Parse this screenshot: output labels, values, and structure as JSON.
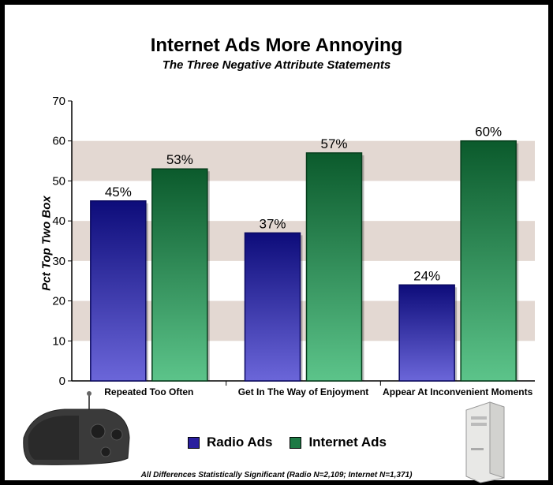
{
  "chart_data": {
    "type": "bar",
    "title": "Internet Ads More Annoying",
    "subtitle": "The Three Negative Attribute Statements",
    "ylabel": "Pct Top Two Box",
    "xlabel": "",
    "ylim": [
      0,
      70
    ],
    "yticks": [
      0,
      10,
      20,
      30,
      40,
      50,
      60,
      70
    ],
    "grid": "alternating horizontal bands",
    "legend_placement": "bottom-center",
    "categories": [
      "Repeated Too Often",
      "Get In The Way of Enjoyment",
      "Appear At Inconvenient Moments"
    ],
    "series": [
      {
        "name": "Radio Ads",
        "values": [
          45,
          37,
          24
        ],
        "labels": [
          "45%",
          "37%",
          "24%"
        ],
        "color": "#2a1f9e"
      },
      {
        "name": "Internet Ads",
        "values": [
          53,
          57,
          60
        ],
        "labels": [
          "53%",
          "57%",
          "60%"
        ],
        "color": "#1d7a45"
      }
    ],
    "footnote": "All Differences Statistically Significant (Radio N=2,109; Internet N=1,371)"
  },
  "colors": {
    "band": "#e3d8d2",
    "radio_top": "#0d0c7a",
    "radio_bottom": "#6b66d9",
    "internet_top": "#0b5a2c",
    "internet_bottom": "#5cc48a"
  },
  "icons": {
    "radio": "radio-icon",
    "computer": "computer-tower-icon"
  }
}
